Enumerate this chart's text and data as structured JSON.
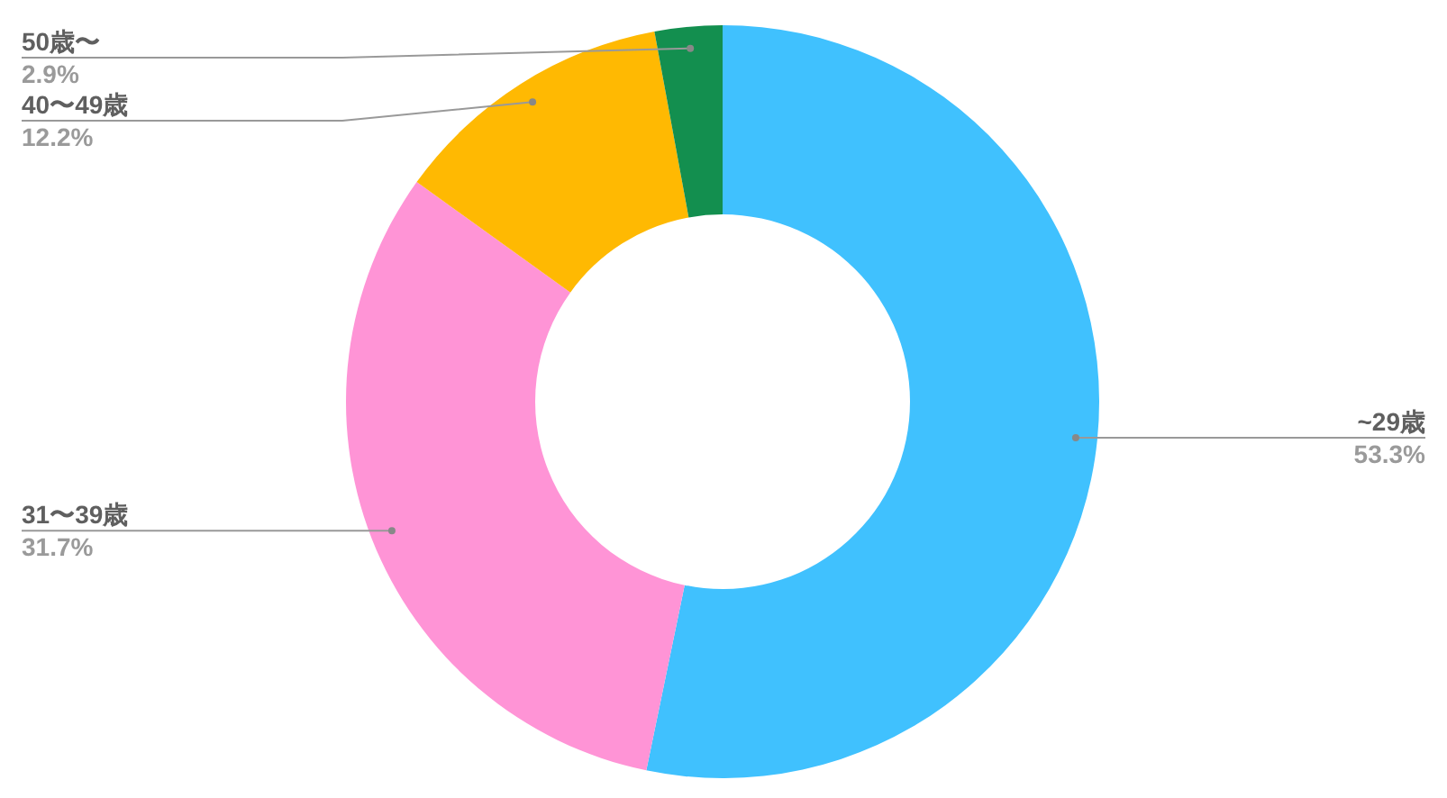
{
  "chart_data": {
    "type": "donut",
    "categories": [
      "~29歳",
      "31〜39歳",
      "40〜49歳",
      "50歳〜"
    ],
    "values": [
      53.3,
      31.7,
      12.2,
      2.9
    ],
    "colors": [
      "#40c1fe",
      "#ff94d6",
      "#ffb902",
      "#138f4f"
    ],
    "value_labels": [
      "53.3%",
      "31.7%",
      "12.2%",
      "2.9%"
    ],
    "legend": false
  }
}
